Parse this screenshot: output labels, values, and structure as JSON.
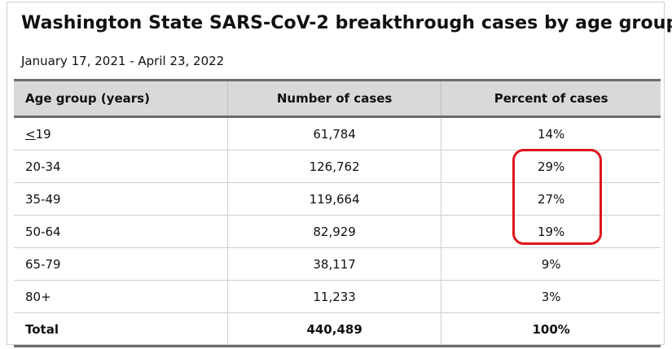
{
  "title": "Washington State SARS-CoV-2 breakthrough cases by age group",
  "subtitle": "January 17, 2021 - April 23, 2022",
  "table": {
    "headers": [
      "Age group (years)",
      "Number of cases",
      "Percent of cases"
    ],
    "rows": [
      {
        "age": "<19",
        "cases": "61,784",
        "percent": "14%"
      },
      {
        "age": "20-34",
        "cases": "126,762",
        "percent": "29%"
      },
      {
        "age": "35-49",
        "cases": "119,664",
        "percent": "27%"
      },
      {
        "age": "50-64",
        "cases": "82,929",
        "percent": "19%"
      },
      {
        "age": "65-79",
        "cases": "38,117",
        "percent": "9%"
      },
      {
        "age": "80+",
        "cases": "11,233",
        "percent": "3%"
      }
    ],
    "total": {
      "age": "Total",
      "cases": "440,489",
      "percent": "100%"
    }
  },
  "annotation": {
    "color": "#e0141a"
  }
}
